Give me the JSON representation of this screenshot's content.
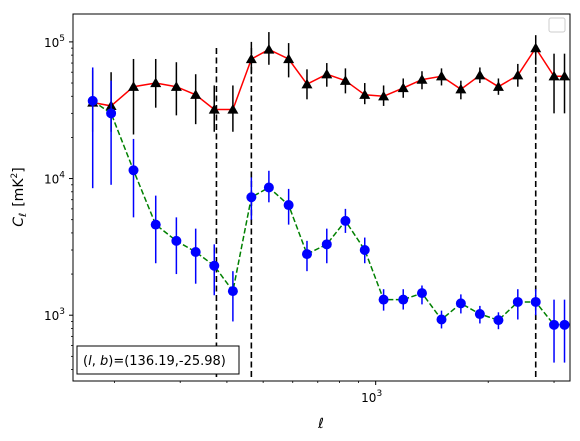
{
  "chart_data": {
    "type": "scatter",
    "xscale": "log",
    "yscale": "log",
    "xlim": [
      155,
      3310
    ],
    "ylim": [
      330,
      160000
    ],
    "xlabel": "ℓ",
    "ylabel": "C_ℓ [mK²]",
    "ylabel_parts": {
      "main": "C",
      "sub": "ℓ",
      "unit": "[mK",
      "sup": "2",
      "close": "]"
    },
    "xticks": [
      {
        "value": 1000,
        "base": "10",
        "exp": "3"
      }
    ],
    "yticks": [
      {
        "value": 1000,
        "base": "10",
        "exp": "3"
      },
      {
        "value": 10000,
        "base": "10",
        "exp": "4"
      },
      {
        "value": 100000,
        "base": "10",
        "exp": "5"
      }
    ],
    "vlines": [
      375,
      465,
      2680
    ],
    "annotation": "(l, b)=(136.19,-25.98)",
    "annotation_parts": {
      "l": "l",
      "b": "b",
      "value": "=(136.19,-25.98)"
    },
    "legend_placement": "upper right",
    "series": [
      {
        "marker": "triangle",
        "marker_color": "#000000",
        "line_color": "#ff0000",
        "line_style": "solid",
        "errorbar_color": "#000000",
        "x": [
          175,
          196,
          225,
          258,
          293,
          330,
          370,
          415,
          465,
          518,
          585,
          655,
          740,
          830,
          935,
          1050,
          1185,
          1330,
          1500,
          1690,
          1900,
          2130,
          2400,
          2680,
          3000,
          3200
        ],
        "y": [
          36000,
          34000,
          47000,
          50000,
          47000,
          41000,
          32000,
          32000,
          75000,
          88000,
          75000,
          49000,
          58000,
          52000,
          41000,
          40000,
          46000,
          53000,
          56000,
          45000,
          57000,
          47000,
          57000,
          90000,
          56000,
          56000
        ],
        "ylo": [
          22000,
          22000,
          21000,
          33000,
          29000,
          25000,
          22000,
          22000,
          58000,
          68000,
          55000,
          38000,
          47000,
          42000,
          35000,
          34000,
          39000,
          45000,
          48000,
          38000,
          50000,
          41000,
          47000,
          68000,
          30000,
          30000
        ],
        "yhi": [
          62000,
          60000,
          75000,
          75000,
          71000,
          58000,
          48000,
          48000,
          100000,
          118000,
          98000,
          63000,
          70000,
          64000,
          50000,
          48000,
          54000,
          61000,
          64000,
          52000,
          65000,
          54000,
          69000,
          112000,
          82000,
          82000
        ]
      },
      {
        "marker": "circle",
        "marker_color": "#0000ff",
        "line_color": "#008000",
        "line_style": "dashed",
        "errorbar_color": "#0000ff",
        "x": [
          175,
          196,
          225,
          258,
          293,
          330,
          370,
          415,
          465,
          518,
          585,
          655,
          740,
          830,
          935,
          1050,
          1185,
          1330,
          1500,
          1690,
          1900,
          2130,
          2400,
          2680,
          3000,
          3200
        ],
        "y": [
          37000,
          30000,
          11500,
          4600,
          3500,
          2900,
          2300,
          1500,
          7300,
          8600,
          6400,
          2800,
          3300,
          4900,
          3000,
          1300,
          1300,
          1450,
          930,
          1220,
          1020,
          920,
          1250,
          1250,
          850,
          850
        ],
        "ylo": [
          8500,
          9000,
          5200,
          2400,
          2000,
          1700,
          1400,
          900,
          5000,
          6700,
          4600,
          2100,
          2400,
          4000,
          2400,
          1080,
          1100,
          1200,
          800,
          1030,
          870,
          790,
          930,
          1000,
          450,
          450
        ],
        "yhi": [
          65000,
          52000,
          19500,
          7500,
          5200,
          4300,
          3300,
          2100,
          10200,
          11400,
          8400,
          3500,
          4300,
          6000,
          3700,
          1550,
          1550,
          1650,
          1080,
          1420,
          1170,
          1050,
          1550,
          1550,
          1300,
          1300
        ]
      }
    ]
  }
}
